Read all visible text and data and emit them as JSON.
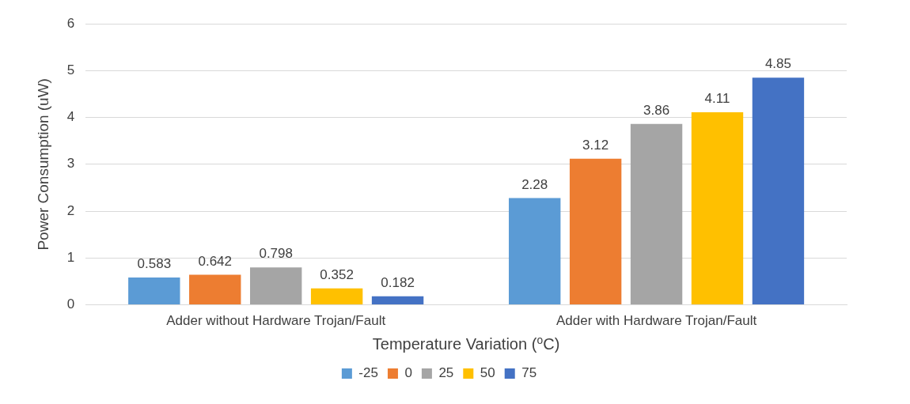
{
  "chart_data": {
    "type": "bar",
    "xlabel": "Temperature Variation (⁰C)",
    "ylabel": "Power Consumption (uW)",
    "categories": [
      "Adder without Hardware Trojan/Fault",
      "Adder with Hardware Trojan/Fault"
    ],
    "series": [
      {
        "name": "-25",
        "color": "#5b9bd5",
        "values": [
          0.583,
          2.28
        ]
      },
      {
        "name": "0",
        "color": "#ed7d31",
        "values": [
          0.642,
          3.12
        ]
      },
      {
        "name": "25",
        "color": "#a5a5a5",
        "values": [
          0.798,
          3.86
        ]
      },
      {
        "name": "50",
        "color": "#ffc000",
        "values": [
          0.352,
          4.11
        ]
      },
      {
        "name": "75",
        "color": "#4472c4",
        "values": [
          0.182,
          4.85
        ]
      }
    ],
    "ylim": [
      0,
      6
    ],
    "yticks": [
      0,
      1,
      2,
      3,
      4,
      5,
      6
    ],
    "grid": "y",
    "legend": "bottom",
    "data_labels": true
  }
}
